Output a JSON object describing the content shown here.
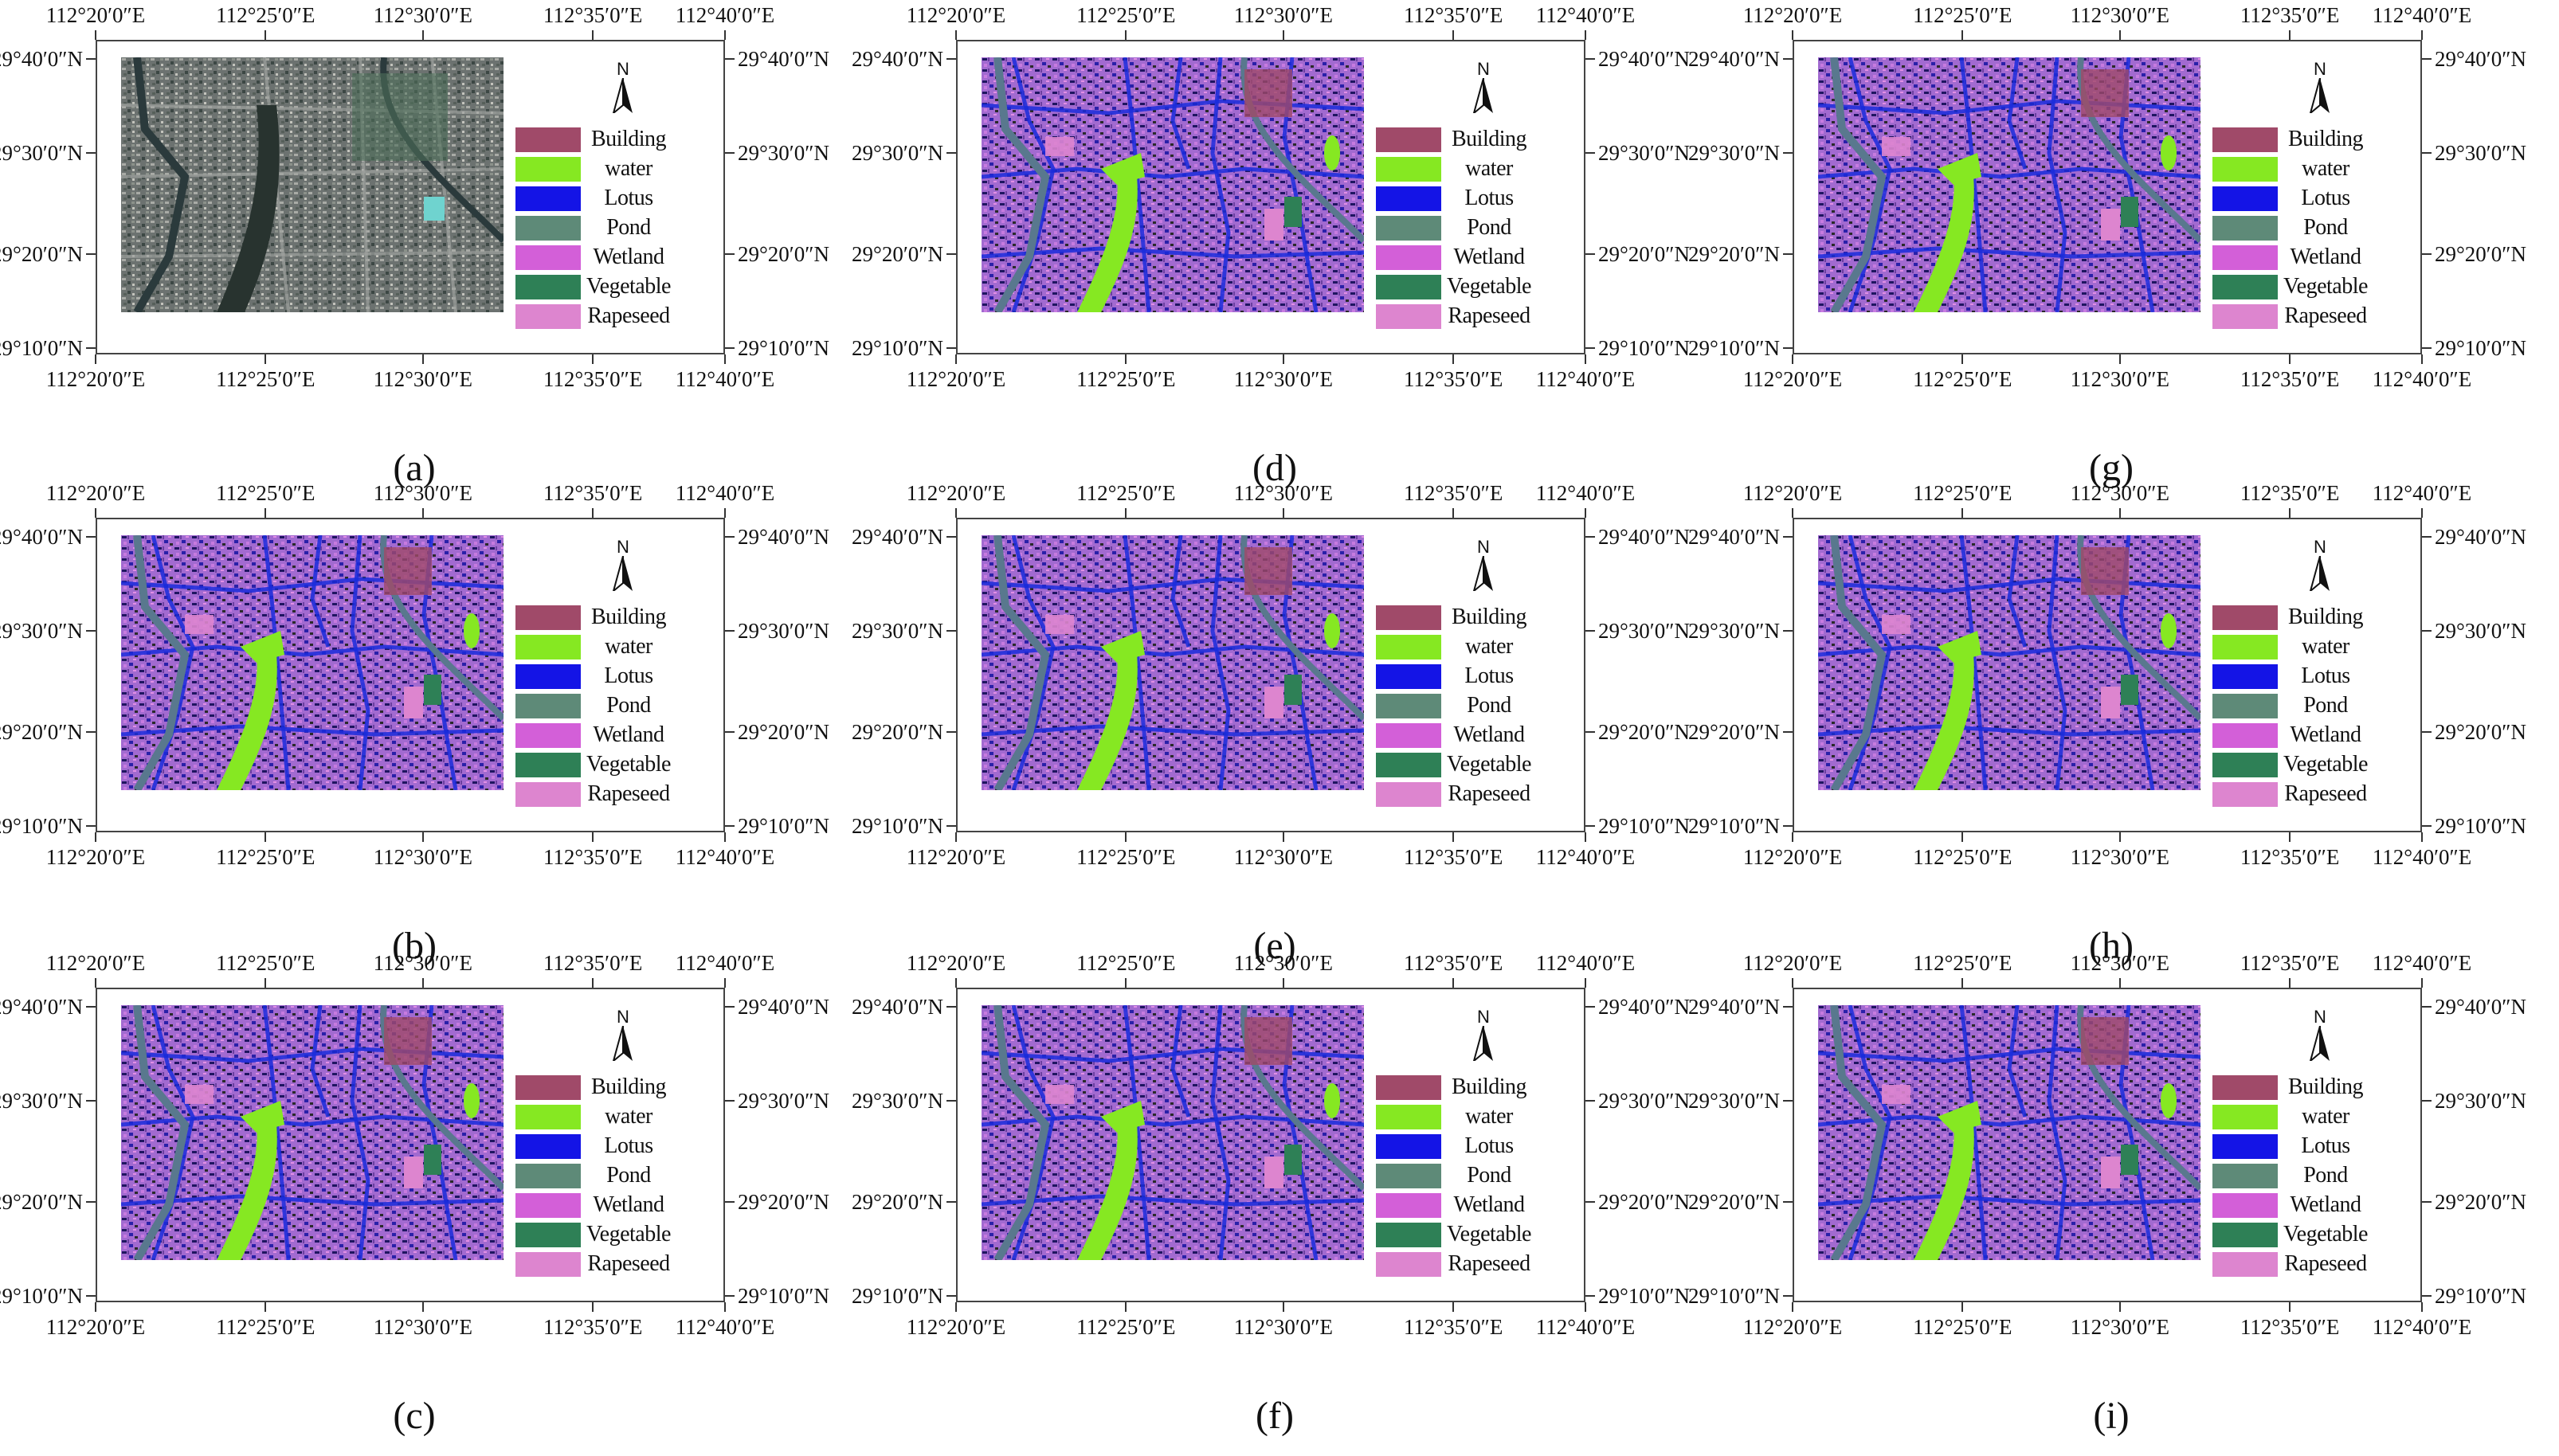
{
  "longitude_labels": [
    "112°20′0″E",
    "112°25′0″E",
    "112°30′0″E",
    "112°35′0″E",
    "112°40′0″E"
  ],
  "latitude_labels": [
    "29°40′0″N",
    "29°30′0″N",
    "29°20′0″N",
    "29°10′0″N"
  ],
  "north_label": "N",
  "legend": [
    {
      "name": "Building",
      "color": "#a04a69"
    },
    {
      "name": "water",
      "color": "#86e822"
    },
    {
      "name": "Lotus",
      "color": "#1414e6"
    },
    {
      "name": "Pond",
      "color": "#5e8a78"
    },
    {
      "name": "Wetland",
      "color": "#d35fd8"
    },
    {
      "name": "Vegetable",
      "color": "#2e8056"
    },
    {
      "name": "Rapeseed",
      "color": "#dd85cf"
    }
  ],
  "panels": [
    {
      "label": "(a)",
      "kind": "satellite"
    },
    {
      "label": "(b)",
      "kind": "classified"
    },
    {
      "label": "(c)",
      "kind": "classified"
    },
    {
      "label": "(d)",
      "kind": "classified"
    },
    {
      "label": "(e)",
      "kind": "classified"
    },
    {
      "label": "(f)",
      "kind": "classified"
    },
    {
      "label": "(g)",
      "kind": "classified"
    },
    {
      "label": "(h)",
      "kind": "classified"
    },
    {
      "label": "(i)",
      "kind": "classified"
    }
  ]
}
